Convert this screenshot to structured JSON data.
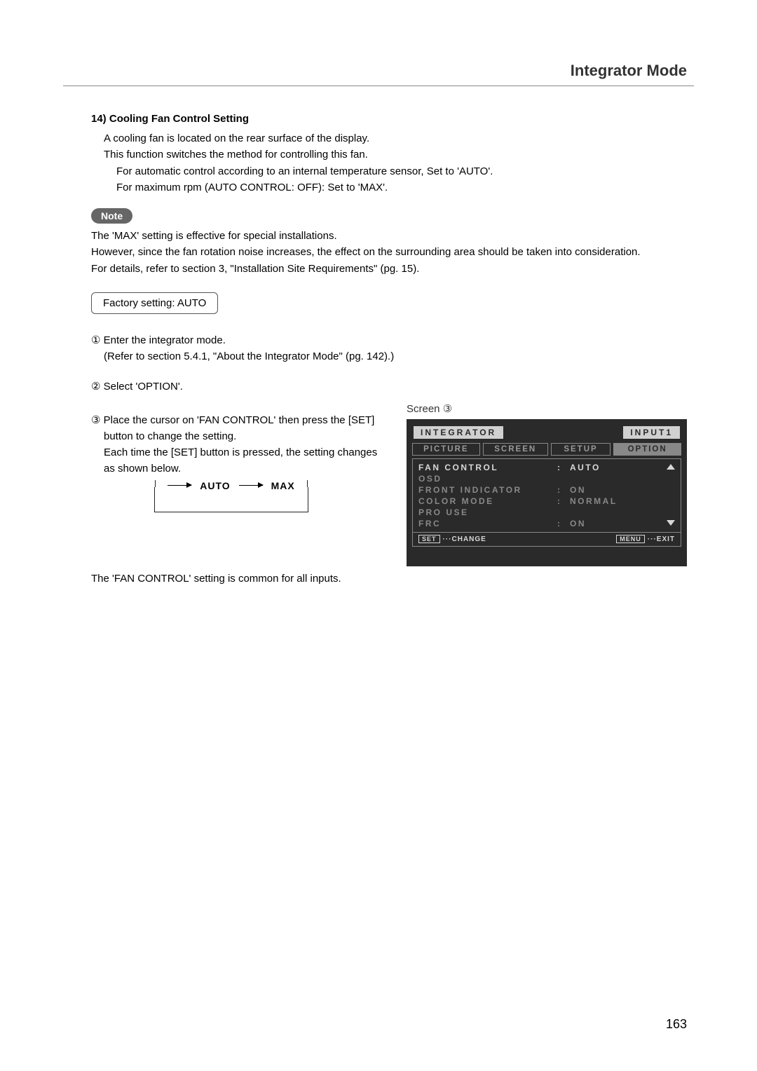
{
  "header": {
    "title": "Integrator Mode"
  },
  "section": {
    "number": "14)",
    "heading": "Cooling Fan Control Setting",
    "p1": "A cooling fan is located on the rear surface of the display.",
    "p2": "This function switches the method for controlling this fan.",
    "p3": "For automatic control according to an internal temperature sensor, Set to 'AUTO'.",
    "p4": "For maximum rpm (AUTO CONTROL: OFF): Set to 'MAX'."
  },
  "note": {
    "badge": "Note",
    "l1": "The 'MAX' setting is effective for special installations.",
    "l2": "However, since the fan rotation noise increases, the effect on the surrounding area should be taken into consideration.",
    "l3": "For details, refer to section 3, \"Installation Site Requirements\" (pg. 15)."
  },
  "factory": {
    "text": "Factory setting:  AUTO"
  },
  "steps": {
    "s1": "① Enter the integrator mode.",
    "s1ref": "(Refer to section 5.4.1, \"About the Integrator Mode\" (pg. 142).)",
    "s2": "② Select 'OPTION'.",
    "s3a": "③ Place the cursor on 'FAN CONTROL' then press the [SET]",
    "s3b": "button to change the setting.",
    "s3c": "Each time the [SET] button is pressed, the setting changes",
    "s3d": "as shown below."
  },
  "toggle": {
    "opt1": "AUTO",
    "opt2": "MAX"
  },
  "common": "The 'FAN CONTROL' setting is common for all inputs.",
  "screen_label": "Screen ③",
  "osd": {
    "title_left": "INTEGRATOR",
    "title_right": "INPUT1",
    "tabs": [
      "PICTURE",
      "SCREEN",
      "SETUP",
      "OPTION"
    ],
    "tab_widths": [
      "26%",
      "25%",
      "23%",
      "26%"
    ],
    "active_tab": 3,
    "rows": [
      {
        "label": "FAN CONTROL",
        "val": "AUTO",
        "hl": true,
        "arrow": "up"
      },
      {
        "label": "OSD",
        "val": "",
        "hl": false,
        "arrow": ""
      },
      {
        "label": "FRONT INDICATOR",
        "val": "ON",
        "hl": false,
        "arrow": ""
      },
      {
        "label": "COLOR MODE",
        "val": "NORMAL",
        "hl": false,
        "arrow": ""
      },
      {
        "label": "PRO USE",
        "val": "",
        "hl": false,
        "arrow": ""
      },
      {
        "label": "FRC",
        "val": "ON",
        "hl": false,
        "arrow": "down"
      }
    ],
    "footer_left_btn": "SET",
    "footer_left_text": "···CHANGE",
    "footer_right_btn": "MENU",
    "footer_right_text": "···EXIT",
    "colors": {
      "bg": "#2a2a2a",
      "text_dim": "#888888",
      "text_hl": "#d8d8d8",
      "tab_active_bg": "#888888",
      "header_bg": "#d0d0d0"
    }
  },
  "page_number": "163"
}
